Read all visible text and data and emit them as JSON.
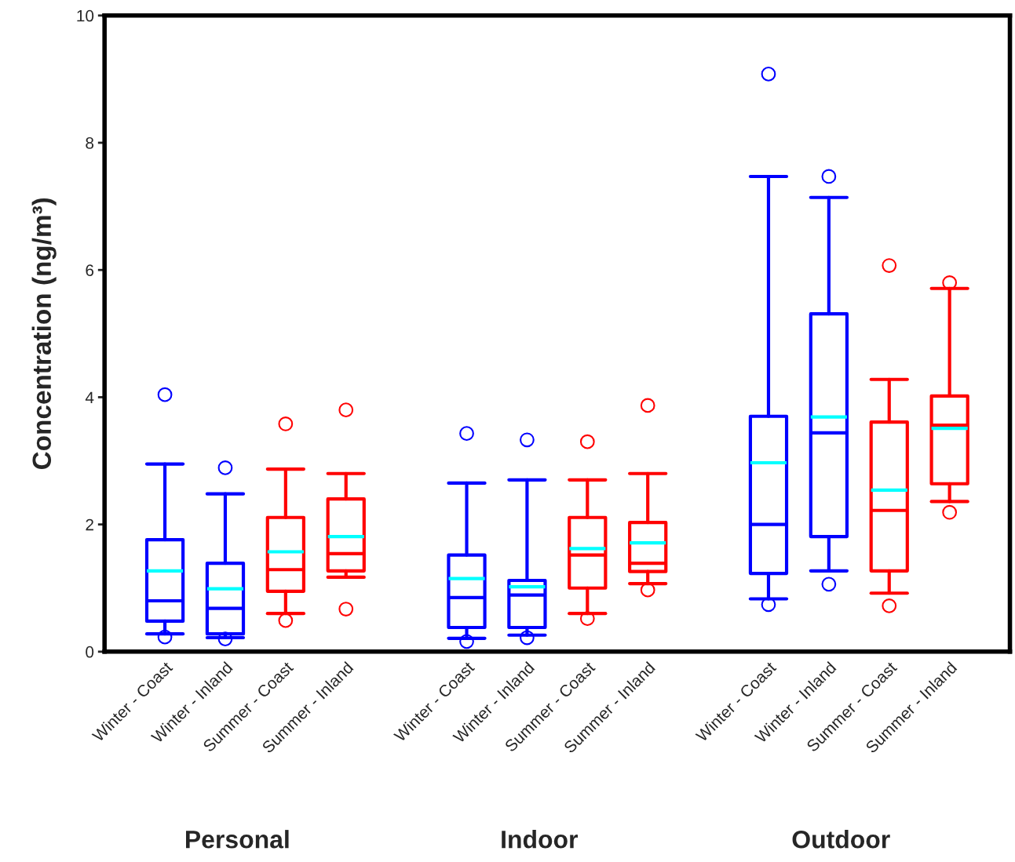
{
  "chart_data": {
    "type": "box",
    "ylabel": "Concentration (ng/m³)",
    "categories": [
      "Winter - Coast",
      "Winter - Inland",
      "Summer - Coast",
      "Summer - Inland",
      null,
      "Winter - Coast",
      "Winter - Inland",
      "Summer - Coast",
      "Summer - Inland",
      null,
      "Winter - Coast",
      "Winter - Inland",
      "Summer - Coast",
      "Summer - Inland"
    ],
    "colors": [
      "#0000ff",
      "#0000ff",
      "#ff0000",
      "#ff0000",
      null,
      "#0000ff",
      "#0000ff",
      "#ff0000",
      "#ff0000",
      null,
      "#0000ff",
      "#0000ff",
      "#ff0000",
      "#ff0000"
    ],
    "boxes": [
      {
        "low": 0.28,
        "q1": 0.48,
        "median": 0.8,
        "q3": 1.76,
        "high": 2.95,
        "mean": 1.27,
        "outliers": [
          4.04,
          0.23
        ]
      },
      {
        "low": 0.22,
        "q1": 0.28,
        "median": 0.68,
        "q3": 1.39,
        "high": 2.48,
        "mean": 0.99,
        "outliers": [
          2.89,
          0.2
        ]
      },
      {
        "low": 0.6,
        "q1": 0.95,
        "median": 1.29,
        "q3": 2.11,
        "high": 2.87,
        "mean": 1.57,
        "outliers": [
          3.58,
          0.49
        ]
      },
      {
        "low": 1.17,
        "q1": 1.27,
        "median": 1.54,
        "q3": 2.4,
        "high": 2.8,
        "mean": 1.81,
        "outliers": [
          3.8,
          0.67
        ]
      },
      null,
      {
        "low": 0.21,
        "q1": 0.38,
        "median": 0.85,
        "q3": 1.52,
        "high": 2.65,
        "mean": 1.15,
        "outliers": [
          3.43,
          0.16
        ]
      },
      {
        "low": 0.26,
        "q1": 0.38,
        "median": 0.89,
        "q3": 1.12,
        "high": 2.7,
        "mean": 1.02,
        "outliers": [
          3.33,
          0.22
        ]
      },
      {
        "low": 0.6,
        "q1": 1.0,
        "median": 1.52,
        "q3": 2.11,
        "high": 2.7,
        "mean": 1.62,
        "outliers": [
          3.3,
          0.52
        ]
      },
      {
        "low": 1.07,
        "q1": 1.26,
        "median": 1.39,
        "q3": 2.03,
        "high": 2.8,
        "mean": 1.71,
        "outliers": [
          3.87,
          0.97
        ]
      },
      null,
      {
        "low": 0.83,
        "q1": 1.23,
        "median": 2.0,
        "q3": 3.7,
        "high": 7.47,
        "mean": 2.97,
        "outliers": [
          9.08,
          0.74
        ]
      },
      {
        "low": 1.27,
        "q1": 1.81,
        "median": 3.44,
        "q3": 5.31,
        "high": 7.14,
        "mean": 3.69,
        "outliers": [
          7.47,
          1.06
        ]
      },
      {
        "low": 0.92,
        "q1": 1.27,
        "median": 2.22,
        "q3": 3.61,
        "high": 4.28,
        "mean": 2.54,
        "outliers": [
          6.07,
          0.72
        ]
      },
      {
        "low": 2.36,
        "q1": 2.64,
        "median": 3.56,
        "q3": 4.02,
        "high": 5.71,
        "mean": 3.51,
        "outliers": [
          5.8,
          2.19
        ]
      }
    ],
    "annotations": [
      "Personal",
      "Indoor",
      "Outdoor"
    ],
    "ylim": [
      0,
      10
    ],
    "yticks": [
      0,
      2,
      4,
      6,
      8,
      10
    ],
    "grid": false,
    "legend": false
  }
}
